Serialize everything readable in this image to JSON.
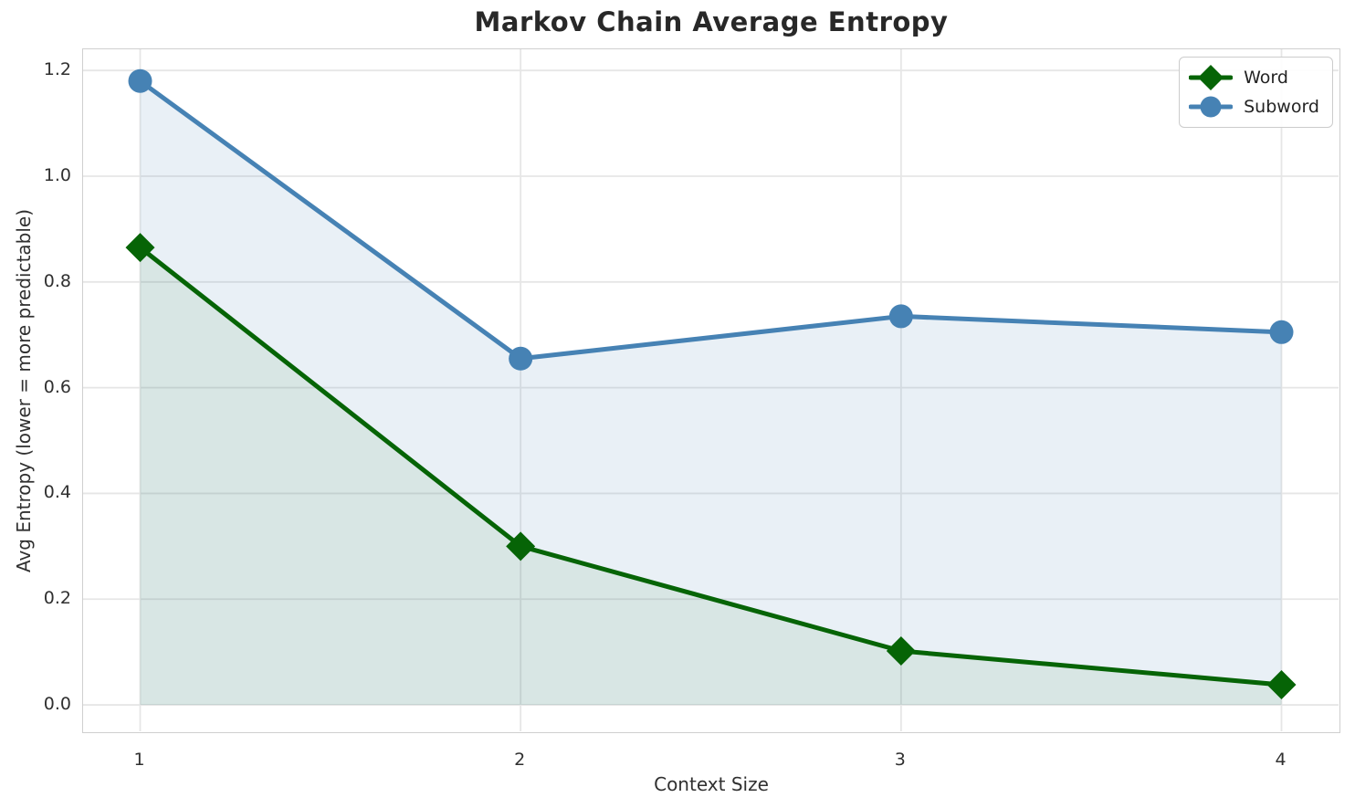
{
  "chart_data": {
    "type": "line",
    "title": "Markov Chain Average Entropy",
    "xlabel": "Context Size",
    "ylabel": "Avg Entropy (lower = more predictable)",
    "x": [
      1,
      2,
      3,
      4
    ],
    "series": [
      {
        "name": "Word",
        "color": "#066406",
        "marker": "diamond",
        "values": [
          0.865,
          0.3,
          0.102,
          0.038
        ],
        "fill_color": "rgba(0,100,0,0.07)"
      },
      {
        "name": "Subword",
        "color": "#4682b4",
        "marker": "circle",
        "values": [
          1.18,
          0.655,
          0.735,
          0.705
        ],
        "fill_color": "rgba(70,130,180,0.12)"
      }
    ],
    "xtick_labels": [
      "1",
      "2",
      "3",
      "4"
    ],
    "ytick_labels": [
      "0.0",
      "0.2",
      "0.4",
      "0.6",
      "0.8",
      "1.0",
      "1.2"
    ],
    "xlim": [
      0.85,
      4.15
    ],
    "ylim": [
      -0.05,
      1.24
    ],
    "grid": true,
    "grid_color": "#e6e6e6",
    "fill_baseline": 0,
    "legend": {
      "position": "upper right",
      "entries": [
        "Word",
        "Subword"
      ]
    }
  }
}
